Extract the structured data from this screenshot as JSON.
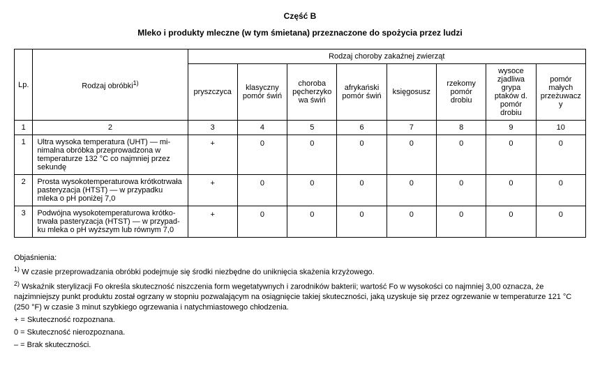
{
  "header": {
    "part": "Część B",
    "subtitle": "Mleko i produkty mleczne (w tym śmietana) przeznaczone do spożycia przez ludzi"
  },
  "table": {
    "cols": {
      "lp": "Lp.",
      "treatment": "Rodzaj obróbki",
      "treatment_sup": "1)",
      "disease_group": "Rodzaj choroby zakaźnej zwierząt",
      "diseases": [
        "pryszczyca",
        "klasyczny pomór świń",
        "choroba pęcherzykowa świń",
        "afrykański pomór świń",
        "księgosusz",
        "rzekomy pomór drobiu",
        "wysoce zjadliwa grypa ptaków d. pomór drobiu",
        "pomór małych przeżuwaczy"
      ]
    },
    "num_row": [
      "1",
      "2",
      "3",
      "4",
      "5",
      "6",
      "7",
      "8",
      "9",
      "10"
    ],
    "rows": [
      {
        "lp": "1",
        "treatment": "Ultra wysoka temperatura (UHT) — mi­nimalna obróbka przeprowadzona w temperaturze 132 °C co najmniej przez sekundę",
        "values": [
          "+",
          "0",
          "0",
          "0",
          "0",
          "0",
          "0",
          "0"
        ]
      },
      {
        "lp": "2",
        "treatment": "Prosta wysokotemperaturowa krótko­trwała pasteryzacja (HTST) — w przypad­ku mleka o pH poniżej 7,0",
        "values": [
          "+",
          "0",
          "0",
          "0",
          "0",
          "0",
          "0",
          "0"
        ]
      },
      {
        "lp": "3",
        "treatment": "Podwójna wysokotemperaturowa krótko­trwała pasteryzacja (HTST) — w przypad­ku mleka o pH wyższym lub równym 7,0",
        "values": [
          "+",
          "0",
          "0",
          "0",
          "0",
          "0",
          "0",
          "0"
        ]
      }
    ]
  },
  "explain": {
    "title": "Objaśnienia:",
    "note1_sup": "1)",
    "note1": " W czasie przeprowadzania obróbki podejmuje się środki niezbędne do uniknięcia skażenia krzyżowego.",
    "note2_sup": "2)",
    "note2": " Wskaźnik sterylizacji Fo określa skuteczność niszczenia form wegetatywnych i zarodników bakterii; wartość Fo w wysokości co najmniej 3,00 oznacza, że najzimniejszy punkt produktu został ogrzany w stopniu pozwalającym na osiągnięcie takiej skuteczności, jaką uzyskuje się przez ogrzewanie w temperaturze 121 °C (250 °F) w cza­sie 3 minut szybkiego ogrzewania i natychmiastowego chłodzenia.",
    "legend_plus": "+ = Skuteczność rozpoznana.",
    "legend_zero": "0 = Skuteczność nierozpoznana.",
    "legend_minus": "– = Brak skuteczności."
  }
}
